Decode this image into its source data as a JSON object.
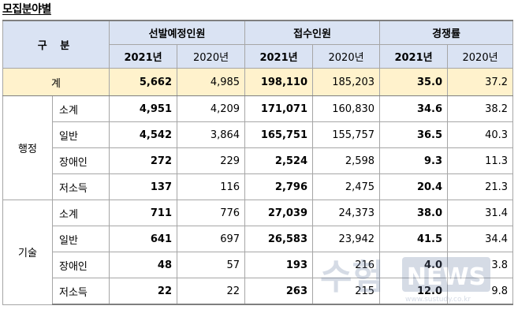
{
  "title": "모집분야별",
  "header": {
    "gubun": "구 분",
    "groups": [
      "선발예정인원",
      "접수인원",
      "경쟁률"
    ],
    "years": [
      "2021년",
      "2020년"
    ]
  },
  "total": {
    "label": "계",
    "values": [
      "5,662",
      "4,985",
      "198,110",
      "185,203",
      "35.0",
      "37.2"
    ]
  },
  "categories": [
    {
      "name": "행정",
      "rows": [
        {
          "label": "소계",
          "values": [
            "4,951",
            "4,209",
            "171,071",
            "160,830",
            "34.6",
            "38.2"
          ]
        },
        {
          "label": "일반",
          "values": [
            "4,542",
            "3,864",
            "165,751",
            "155,757",
            "36.5",
            "40.3"
          ]
        },
        {
          "label": "장애인",
          "values": [
            "272",
            "229",
            "2,524",
            "2,598",
            "9.3",
            "11.3"
          ]
        },
        {
          "label": "저소득",
          "values": [
            "137",
            "116",
            "2,796",
            "2,475",
            "20.4",
            "21.3"
          ]
        }
      ]
    },
    {
      "name": "기술",
      "rows": [
        {
          "label": "소계",
          "values": [
            "711",
            "776",
            "27,039",
            "24,373",
            "38.0",
            "31.4"
          ]
        },
        {
          "label": "일반",
          "values": [
            "641",
            "697",
            "26,583",
            "23,942",
            "41.5",
            "34.4"
          ]
        },
        {
          "label": "장애인",
          "values": [
            "48",
            "57",
            "193",
            "216",
            "4.0",
            "3.8"
          ]
        },
        {
          "label": "저소득",
          "values": [
            "22",
            "22",
            "263",
            "215",
            "12.0",
            "9.8"
          ]
        }
      ]
    }
  ],
  "watermark": {
    "main": "수험",
    "brand": "NEWS",
    "url": "www.sustudy.co.kr"
  }
}
